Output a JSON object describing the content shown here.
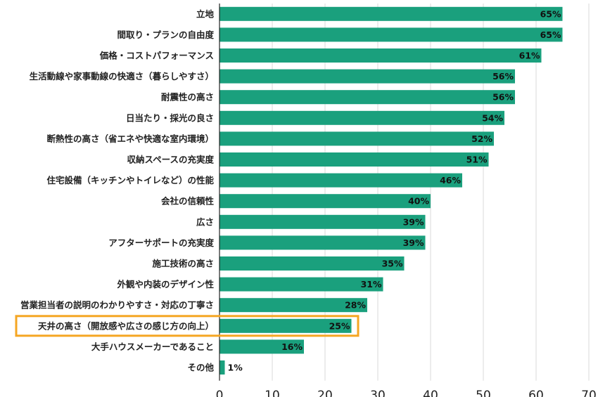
{
  "chart_data": {
    "type": "bar",
    "orientation": "horizontal",
    "categories": [
      "立地",
      "間取り・プランの自由度",
      "価格・コストパフォーマンス",
      "生活動線や家事動線の快適さ（暮らしやすさ）",
      "耐震性の高さ",
      "日当たり・採光の良さ",
      "断熱性の高さ（省エネや快適な室内環境）",
      "収納スペースの充実度",
      "住宅設備（キッチンやトイレなど）の性能",
      "会社の信頼性",
      "広さ",
      "アフターサポートの充実度",
      "施工技術の高さ",
      "外観や内装のデザイン性",
      "営業担当者の説明のわかりやすさ・対応の丁寧さ",
      "天井の高さ（開放感や広さの感じ方の向上）",
      "大手ハウスメーカーであること",
      "その他"
    ],
    "values": [
      65,
      65,
      61,
      56,
      56,
      54,
      52,
      51,
      46,
      40,
      39,
      39,
      35,
      31,
      28,
      25,
      16,
      1
    ],
    "value_labels": [
      "65%",
      "65%",
      "61%",
      "56%",
      "56%",
      "54%",
      "52%",
      "51%",
      "46%",
      "40%",
      "39%",
      "39%",
      "35%",
      "31%",
      "28%",
      "25%",
      "16%",
      "1%"
    ],
    "xticks": [
      "0",
      "10",
      "20",
      "30",
      "40",
      "50",
      "60",
      "70"
    ],
    "xlim": [
      0,
      70
    ],
    "highlighted_category": "天井の高さ（開放感や広さの感じ方の向上）",
    "grid": "vertical",
    "title": "",
    "xlabel": "",
    "ylabel": "",
    "colors": {
      "bar": "#1aa07d",
      "highlight": "#f5a623",
      "grid": "#d9d9d9",
      "axis": "#222222"
    }
  }
}
